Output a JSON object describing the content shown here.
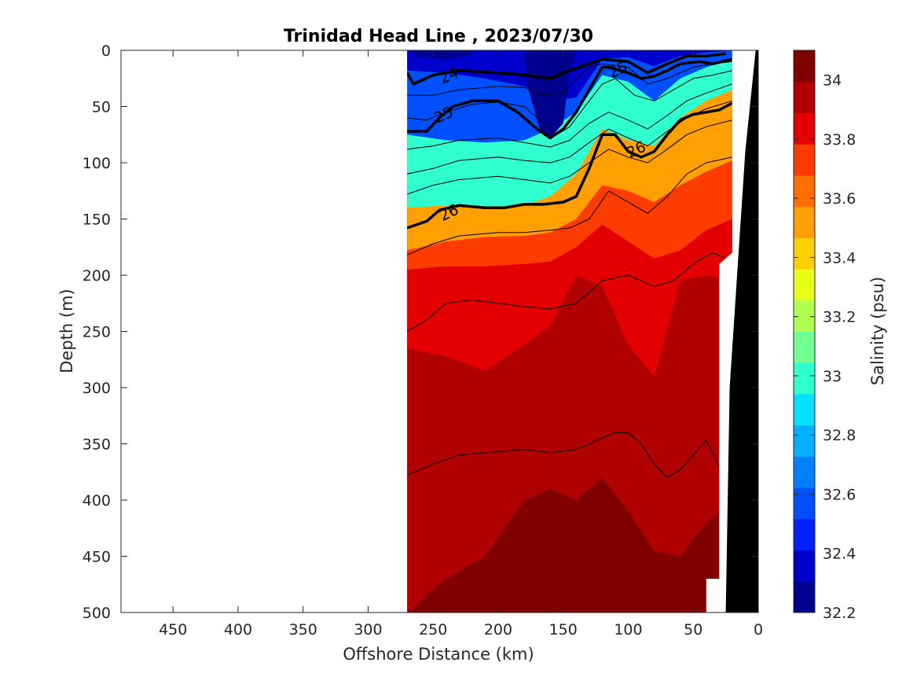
{
  "chart_data": {
    "type": "heatmap",
    "title": "Trinidad Head Line , 2023/07/30",
    "xlabel": "Offshore Distance (km)",
    "ylabel": "Depth (m)",
    "colorbar_label": "Salinity (psu)",
    "xlim": [
      490,
      0
    ],
    "x_reversed": true,
    "ylim": [
      0,
      500
    ],
    "y_reversed": true,
    "x_ticks": [
      "450",
      "400",
      "350",
      "300",
      "250",
      "200",
      "150",
      "100",
      "50",
      "0"
    ],
    "y_ticks": [
      "0",
      "50",
      "100",
      "150",
      "200",
      "250",
      "300",
      "350",
      "400",
      "450",
      "500"
    ],
    "colorbar_ticks": [
      "32.2",
      "32.4",
      "32.6",
      "32.8",
      "33",
      "33.2",
      "33.4",
      "33.6",
      "33.8",
      "34"
    ],
    "colorbar_range": [
      32.2,
      34.1
    ],
    "colormap": [
      "#00008f",
      "#0000cc",
      "#0020ff",
      "#0050ff",
      "#0080ff",
      "#00b0ff",
      "#00e0ff",
      "#30ffd0",
      "#70ff90",
      "#b0ff50",
      "#e8ff18",
      "#ffd000",
      "#ffa000",
      "#ff7000",
      "#ff3c00",
      "#e40000",
      "#b00000",
      "#800000"
    ],
    "data_extent_km": [
      270,
      20
    ],
    "columns_x_km": [
      270,
      240,
      210,
      180,
      160,
      140,
      120,
      100,
      80,
      60,
      40,
      20
    ],
    "salinity_isoline_depths_m": {
      "32.6": [
        18,
        20,
        25,
        32,
        45,
        42,
        8,
        6,
        14,
        5,
        2,
        0
      ],
      "33.0": [
        75,
        80,
        82,
        80,
        70,
        55,
        22,
        28,
        45,
        25,
        15,
        8
      ],
      "33.4": [
        140,
        138,
        140,
        138,
        130,
        110,
        70,
        80,
        85,
        60,
        45,
        35
      ],
      "33.7": [
        178,
        170,
        166,
        165,
        162,
        150,
        120,
        125,
        135,
        120,
        108,
        98
      ],
      "33.9": [
        195,
        192,
        192,
        190,
        188,
        175,
        155,
        170,
        185,
        178,
        160,
        150
      ],
      "34.0": [
        265,
        272,
        285,
        262,
        245,
        200,
        210,
        262,
        290,
        205,
        200,
        205
      ],
      "34.05": [
        500,
        470,
        450,
        400,
        390,
        400,
        380,
        410,
        445,
        450,
        420,
        400
      ]
    },
    "density_contours": [
      {
        "sigma": "24",
        "x_km": [
          270,
          265,
          250,
          230,
          200,
          180,
          160,
          150,
          130,
          120,
          100,
          85,
          70,
          55,
          40,
          25
        ],
        "depth_m": [
          20,
          30,
          22,
          18,
          20,
          22,
          25,
          20,
          12,
          8,
          10,
          20,
          12,
          5,
          5,
          3
        ]
      },
      {
        "sigma": "25",
        "x_km": [
          270,
          255,
          245,
          235,
          220,
          200,
          185,
          170,
          160,
          150,
          140,
          130,
          120,
          115,
          100,
          90,
          80,
          70,
          60,
          45,
          35,
          20
        ],
        "depth_m": [
          72,
          72,
          60,
          50,
          45,
          45,
          55,
          70,
          78,
          70,
          55,
          35,
          15,
          15,
          20,
          25,
          23,
          18,
          12,
          10,
          12,
          8
        ]
      },
      {
        "sigma": "26",
        "x_km": [
          270,
          255,
          245,
          230,
          210,
          195,
          180,
          165,
          150,
          140,
          130,
          120,
          110,
          100,
          90,
          80,
          70,
          60,
          50,
          40,
          30,
          20
        ],
        "depth_m": [
          158,
          152,
          142,
          138,
          140,
          140,
          137,
          137,
          135,
          130,
          105,
          75,
          75,
          90,
          95,
          90,
          75,
          62,
          57,
          55,
          53,
          47
        ]
      }
    ],
    "density_labels": [
      {
        "text": "24",
        "x_km": 238,
        "depth_m": 22
      },
      {
        "text": "25",
        "x_km": 242,
        "depth_m": 57
      },
      {
        "text": "25",
        "x_km": 108,
        "depth_m": 17
      },
      {
        "text": "26",
        "x_km": 238,
        "depth_m": 144
      },
      {
        "text": "26",
        "x_km": 94,
        "depth_m": 88
      }
    ],
    "thin_contours": [
      {
        "x_km": [
          270,
          250,
          230,
          200,
          180,
          165,
          150,
          140,
          130,
          120,
          100,
          85,
          70,
          50,
          35,
          20
        ],
        "depth_m": [
          40,
          40,
          35,
          32,
          33,
          40,
          38,
          25,
          15,
          12,
          15,
          30,
          25,
          15,
          12,
          10
        ]
      },
      {
        "x_km": [
          270,
          255,
          240,
          220,
          200,
          180,
          165,
          155,
          145,
          130,
          120,
          110,
          95,
          80,
          65,
          50,
          35,
          20
        ],
        "depth_m": [
          60,
          62,
          55,
          48,
          46,
          50,
          65,
          75,
          68,
          45,
          30,
          25,
          40,
          45,
          35,
          25,
          22,
          18
        ]
      },
      {
        "x_km": [
          270,
          250,
          230,
          200,
          180,
          160,
          145,
          130,
          115,
          100,
          85,
          70,
          55,
          40,
          20
        ],
        "depth_m": [
          88,
          85,
          80,
          78,
          82,
          86,
          80,
          65,
          55,
          62,
          70,
          58,
          45,
          38,
          30
        ]
      },
      {
        "x_km": [
          270,
          250,
          230,
          200,
          180,
          160,
          145,
          130,
          115,
          100,
          85,
          70,
          55,
          40,
          20
        ],
        "depth_m": [
          110,
          105,
          98,
          95,
          98,
          100,
          95,
          82,
          70,
          78,
          85,
          72,
          60,
          52,
          45
        ]
      },
      {
        "x_km": [
          270,
          250,
          230,
          200,
          180,
          160,
          145,
          130,
          115,
          100,
          85,
          70,
          55,
          40,
          20
        ],
        "depth_m": [
          128,
          120,
          115,
          112,
          115,
          118,
          112,
          100,
          88,
          95,
          100,
          88,
          75,
          68,
          62
        ]
      },
      {
        "x_km": [
          270,
          250,
          230,
          200,
          180,
          160,
          145,
          130,
          115,
          100,
          85,
          70,
          55,
          40,
          20
        ],
        "depth_m": [
          182,
          172,
          165,
          162,
          162,
          160,
          158,
          150,
          125,
          135,
          145,
          130,
          110,
          100,
          95
        ]
      },
      {
        "x_km": [
          270,
          255,
          240,
          220,
          200,
          180,
          160,
          140,
          120,
          100,
          80,
          65,
          50,
          35,
          25
        ],
        "depth_m": [
          250,
          240,
          225,
          222,
          225,
          228,
          230,
          225,
          205,
          200,
          210,
          205,
          190,
          180,
          185
        ]
      },
      {
        "x_km": [
          270,
          250,
          230,
          200,
          180,
          160,
          140,
          120,
          110,
          100,
          90,
          80,
          70,
          60,
          50,
          40,
          30
        ],
        "depth_m": [
          378,
          368,
          360,
          357,
          355,
          358,
          355,
          345,
          340,
          340,
          350,
          368,
          380,
          373,
          360,
          347,
          370
        ]
      }
    ],
    "seafloor_km_at_surface": 2,
    "seafloor_km_at_500m": 25
  }
}
